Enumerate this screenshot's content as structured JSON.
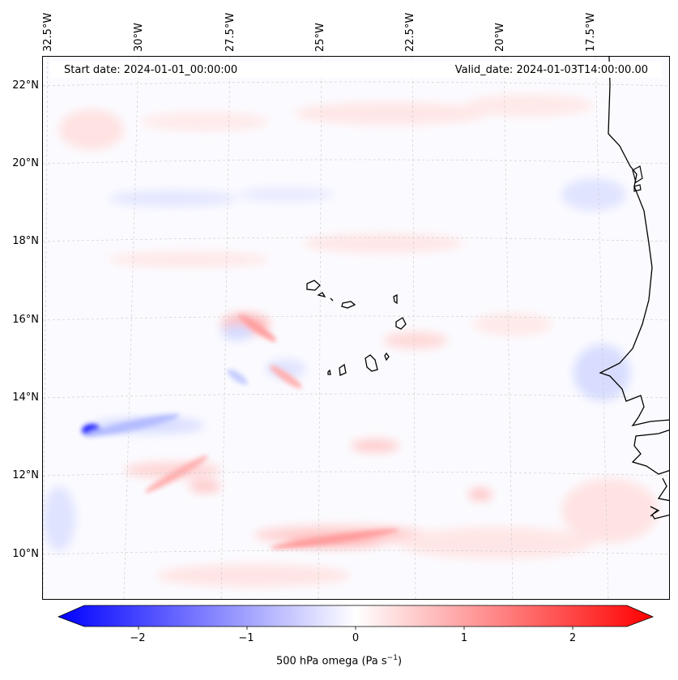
{
  "header": {
    "start_date": "Start date: 2024-01-01_00:00:00",
    "valid_date": "Valid_date: 2024-01-03T14:00:00.00"
  },
  "axes": {
    "lat_labels": [
      "22°N",
      "20°N",
      "18°N",
      "16°N",
      "14°N",
      "12°N",
      "10°N"
    ],
    "lon_labels": [
      "32.5°W",
      "30°W",
      "27.5°W",
      "25°W",
      "22.5°W",
      "20°W",
      "17.5°W"
    ]
  },
  "colorbar": {
    "tick_labels": [
      "−2",
      "−1",
      "0",
      "1",
      "2"
    ],
    "tick_values": [
      -2,
      -1,
      0,
      1,
      2
    ],
    "range": [
      -2.5,
      2.5
    ],
    "title_prefix": "500 hPa omega (Pa s",
    "title_exp": "−1",
    "title_suffix": ")",
    "colors": {
      "neg": "#0000ff",
      "mid": "#ffffff",
      "pos": "#ff0000"
    }
  },
  "map": {
    "field": "500 hPa omega",
    "units": "Pa s-1"
  }
}
